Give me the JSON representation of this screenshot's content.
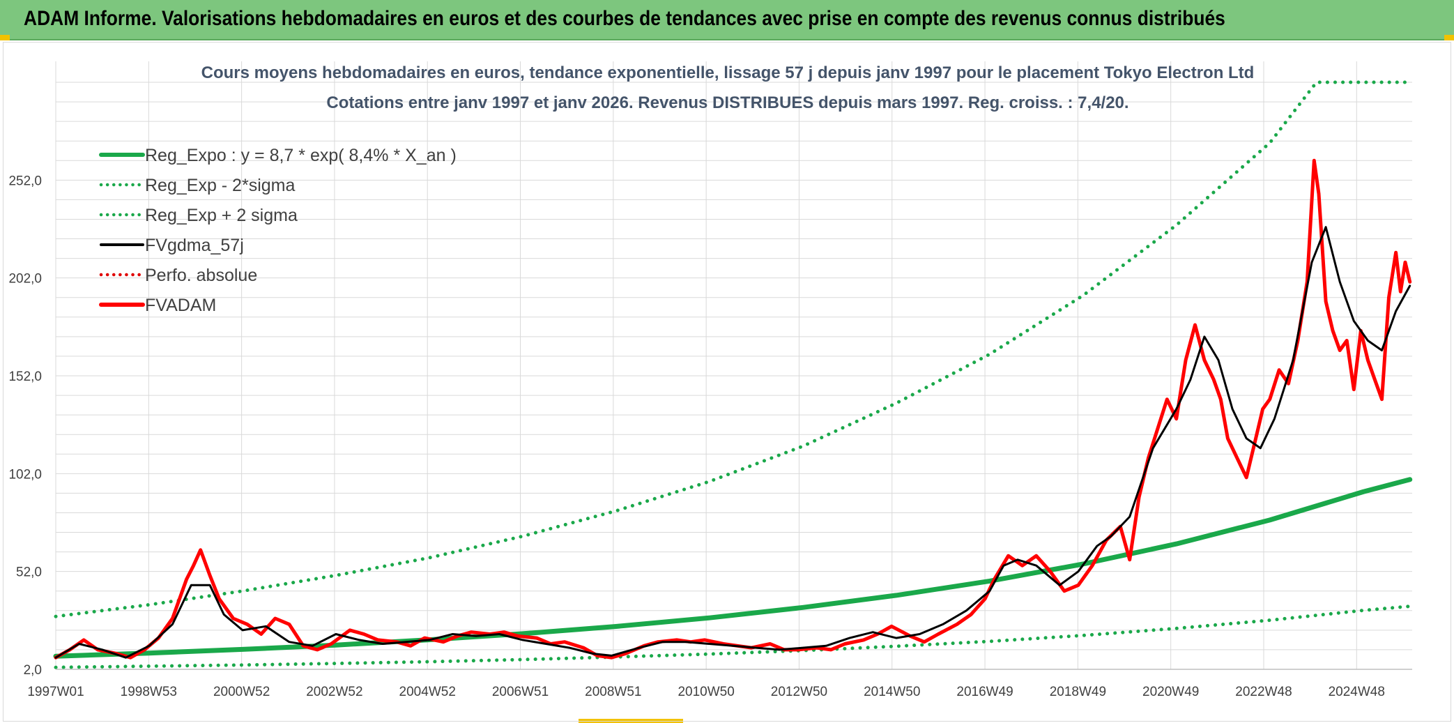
{
  "banner": {
    "title": "ADAM Informe. Valorisations hebdomadaires en euros et des courbes de tendances avec prise en compte des revenus connus distribués"
  },
  "colors": {
    "banner_bg": "#7dc67e",
    "reg_expo": "#1aa84a",
    "sigma": "#1aa84a",
    "gdma": "#000000",
    "perfo": "#e00000",
    "fvadam": "#ff0000",
    "grid": "#d9d9d9",
    "accent": "#f2c200"
  },
  "chart_data": {
    "type": "line",
    "title_line1": "Cours moyens hebdomadaires en euros, tendance exponentielle, lissage 57 j depuis janv 1997 pour le placement Tokyo Electron Ltd",
    "title_line2": "Cotations entre janv 1997 et janv 2026. Revenus DISTRIBUES depuis mars 1997. Reg. croiss. : 7,4/20.",
    "xlabel": "",
    "ylabel": "",
    "x_tick_labels": [
      "1997W01",
      "1998W53",
      "2000W52",
      "2002W52",
      "2004W52",
      "2006W51",
      "2008W51",
      "2010W50",
      "2012W50",
      "2014W50",
      "2016W49",
      "2018W49",
      "2020W49",
      "2022W48",
      "2024W48"
    ],
    "y_tick_labels": [
      "2,0",
      "52,0",
      "102,0",
      "152,0",
      "202,0",
      "252,0"
    ],
    "x_range": [
      1997.0,
      2026.05
    ],
    "y_range": [
      2.0,
      302.0
    ],
    "grid": true,
    "legend_position": "top-left",
    "legend": [
      {
        "label": "Reg_Expo : y = 8,7 * exp( 8,4% *  X_an )",
        "style": "solid-thick",
        "color": "#1aa84a"
      },
      {
        "label": "Reg_Exp - 2*sigma",
        "style": "dotted",
        "color": "#1aa84a"
      },
      {
        "label": "Reg_Exp + 2 sigma",
        "style": "dotted",
        "color": "#1aa84a"
      },
      {
        "label": "FVgdma_57j",
        "style": "solid",
        "color": "#000000"
      },
      {
        "label": "Perfo. absolue",
        "style": "dotted",
        "color": "#e00000"
      },
      {
        "label": "FVADAM",
        "style": "solid-thick",
        "color": "#ff0000"
      }
    ],
    "series": [
      {
        "name": "Reg_Expo : y = 8,7 * exp( 8,4% *  X_an )",
        "x": [
          1997.0,
          1999.0,
          2001.0,
          2003.0,
          2005.0,
          2007.0,
          2009.0,
          2011.0,
          2013.0,
          2015.0,
          2017.0,
          2019.0,
          2021.0,
          2023.0,
          2025.0,
          2026.0
        ],
        "y": [
          8.7,
          10.3,
          12.2,
          14.4,
          17.1,
          20.2,
          23.9,
          28.3,
          33.6,
          39.8,
          47.1,
          55.8,
          66.1,
          78.3,
          92.7,
          99.0
        ]
      },
      {
        "name": "Reg_Exp - 2*sigma",
        "x": [
          1997.0,
          1999.0,
          2001.0,
          2003.0,
          2005.0,
          2007.0,
          2009.0,
          2011.0,
          2013.0,
          2015.0,
          2017.0,
          2019.0,
          2021.0,
          2023.0,
          2025.0,
          2026.0
        ],
        "y": [
          3.0,
          3.6,
          4.2,
          5.0,
          5.9,
          7.0,
          8.3,
          9.8,
          11.6,
          13.8,
          16.3,
          19.3,
          22.9,
          27.1,
          32.1,
          34.2
        ]
      },
      {
        "name": "Reg_Exp + 2 sigma",
        "x": [
          1997.0,
          1999.0,
          2001.0,
          2003.0,
          2005.0,
          2007.0,
          2009.0,
          2011.0,
          2013.0,
          2015.0,
          2017.0,
          2019.0,
          2021.0,
          2023.0,
          2024.0,
          2026.0
        ],
        "y": [
          29.0,
          35.0,
          42.0,
          50.0,
          59.0,
          70.0,
          83.0,
          98.0,
          116.0,
          138.0,
          163.0,
          193.0,
          229.0,
          271.0,
          302.0,
          302.0
        ]
      },
      {
        "name": "FVgdma_57j",
        "x": [
          1997.0,
          1997.5,
          1998.0,
          1998.5,
          1999.0,
          1999.5,
          1999.9,
          2000.3,
          2000.6,
          2001.0,
          2001.5,
          2002.0,
          2002.5,
          2003.0,
          2003.5,
          2004.0,
          2004.5,
          2005.0,
          2005.5,
          2006.0,
          2006.5,
          2007.0,
          2007.5,
          2008.0,
          2008.5,
          2008.9,
          2009.5,
          2010.0,
          2010.5,
          2011.0,
          2011.5,
          2012.0,
          2012.5,
          2013.0,
          2013.5,
          2014.0,
          2014.5,
          2015.0,
          2015.5,
          2016.0,
          2016.5,
          2017.0,
          2017.3,
          2017.6,
          2018.0,
          2018.5,
          2018.9,
          2019.3,
          2019.6,
          2020.0,
          2020.5,
          2021.0,
          2021.3,
          2021.6,
          2021.9,
          2022.2,
          2022.5,
          2022.8,
          2023.1,
          2023.5,
          2023.9,
          2024.2,
          2024.5,
          2024.8,
          2025.1,
          2025.4,
          2025.7,
          2026.0
        ],
        "y": [
          8.0,
          15.0,
          12.0,
          8.0,
          14.0,
          25.0,
          45.0,
          45.0,
          30.0,
          22.0,
          24.0,
          16.0,
          14.0,
          20.0,
          17.0,
          15.0,
          16.0,
          17.0,
          20.0,
          19.0,
          20.0,
          17.0,
          15.0,
          13.0,
          10.0,
          9.0,
          13.0,
          16.0,
          16.0,
          15.0,
          14.0,
          13.0,
          12.0,
          13.0,
          14.0,
          18.0,
          21.0,
          18.0,
          20.0,
          25.0,
          32.0,
          42.0,
          55.0,
          58.0,
          55.0,
          45.0,
          52.0,
          65.0,
          70.0,
          80.0,
          115.0,
          135.0,
          150.0,
          172.0,
          160.0,
          135.0,
          120.0,
          115.0,
          130.0,
          160.0,
          210.0,
          228.0,
          200.0,
          180.0,
          170.0,
          165.0,
          185.0,
          198.0
        ]
      },
      {
        "name": "FVADAM",
        "x": [
          1997.0,
          1997.3,
          1997.6,
          1997.9,
          1998.3,
          1998.6,
          1998.9,
          1999.2,
          1999.5,
          1999.8,
          1999.95,
          2000.1,
          2000.3,
          2000.5,
          2000.8,
          2001.1,
          2001.4,
          2001.7,
          2002.0,
          2002.3,
          2002.6,
          2002.9,
          2003.3,
          2003.6,
          2003.9,
          2004.3,
          2004.6,
          2004.9,
          2005.3,
          2005.6,
          2005.9,
          2006.3,
          2006.6,
          2006.9,
          2007.3,
          2007.6,
          2007.9,
          2008.3,
          2008.6,
          2008.9,
          2009.2,
          2009.6,
          2009.9,
          2010.3,
          2010.6,
          2010.9,
          2011.3,
          2011.6,
          2011.9,
          2012.3,
          2012.6,
          2012.9,
          2013.3,
          2013.6,
          2013.9,
          2014.3,
          2014.6,
          2014.9,
          2015.3,
          2015.6,
          2015.9,
          2016.3,
          2016.6,
          2016.9,
          2017.1,
          2017.4,
          2017.7,
          2018.0,
          2018.3,
          2018.6,
          2018.9,
          2019.2,
          2019.5,
          2019.8,
          2020.0,
          2020.2,
          2020.4,
          2020.6,
          2020.8,
          2021.0,
          2021.2,
          2021.4,
          2021.6,
          2021.8,
          2021.95,
          2022.1,
          2022.3,
          2022.5,
          2022.7,
          2022.85,
          2023.0,
          2023.2,
          2023.4,
          2023.6,
          2023.8,
          2023.95,
          2024.05,
          2024.2,
          2024.35,
          2024.5,
          2024.65,
          2024.8,
          2024.95,
          2025.1,
          2025.25,
          2025.4,
          2025.55,
          2025.7,
          2025.8,
          2025.9,
          2026.0
        ],
        "y": [
          8.0,
          12.0,
          17.0,
          12.0,
          10.0,
          8.0,
          12.0,
          18.0,
          28.0,
          48.0,
          55.0,
          63.0,
          50.0,
          38.0,
          28.0,
          25.0,
          20.0,
          28.0,
          25.0,
          14.0,
          12.0,
          15.0,
          22.0,
          20.0,
          17.0,
          16.0,
          14.0,
          18.0,
          16.0,
          19.0,
          21.0,
          20.0,
          21.0,
          19.0,
          18.0,
          15.0,
          16.0,
          13.0,
          9.0,
          8.0,
          10.0,
          14.0,
          16.0,
          17.0,
          16.0,
          17.0,
          15.0,
          14.0,
          13.0,
          15.0,
          12.0,
          12.0,
          13.0,
          12.0,
          15.0,
          17.0,
          20.0,
          24.0,
          19.0,
          16.0,
          20.0,
          25.0,
          30.0,
          38.0,
          48.0,
          60.0,
          55.0,
          60.0,
          52.0,
          42.0,
          45.0,
          55.0,
          68.0,
          75.0,
          58.0,
          90.0,
          110.0,
          125.0,
          140.0,
          130.0,
          160.0,
          178.0,
          160.0,
          150.0,
          140.0,
          120.0,
          110.0,
          100.0,
          120.0,
          135.0,
          140.0,
          155.0,
          148.0,
          170.0,
          200.0,
          262.0,
          245.0,
          190.0,
          175.0,
          165.0,
          170.0,
          145.0,
          175.0,
          160.0,
          150.0,
          140.0,
          192.0,
          215.0,
          195.0,
          210.0,
          200.0
        ]
      }
    ]
  }
}
